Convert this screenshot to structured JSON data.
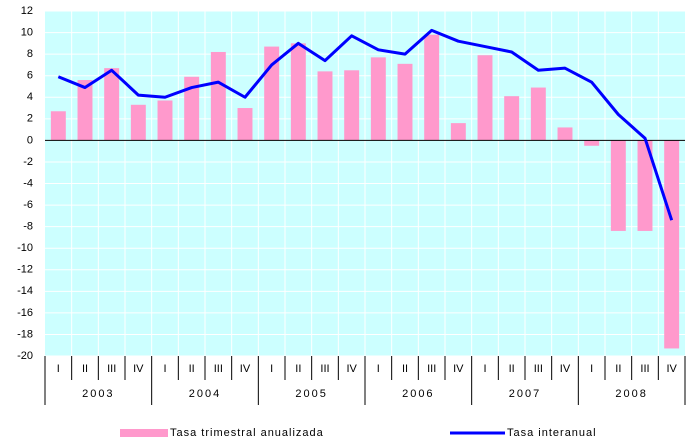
{
  "chart_data": {
    "type": "bar+line",
    "categories": [
      "I",
      "II",
      "III",
      "IV",
      "I",
      "II",
      "III",
      "IV",
      "I",
      "II",
      "III",
      "IV",
      "I",
      "II",
      "III",
      "IV",
      "I",
      "II",
      "III",
      "IV",
      "I",
      "II",
      "III",
      "IV"
    ],
    "groups": [
      "2003",
      "2004",
      "2005",
      "2006",
      "2007",
      "2008"
    ],
    "series": [
      {
        "name": "Tasa trimestral anualizada",
        "type": "bar",
        "color": "#ff99cc",
        "values": [
          2.7,
          5.6,
          6.7,
          3.3,
          3.7,
          5.9,
          8.2,
          3.0,
          8.7,
          9.0,
          6.4,
          6.5,
          7.7,
          7.1,
          9.8,
          1.6,
          7.9,
          4.1,
          4.9,
          1.2,
          -0.5,
          -8.4,
          -8.4,
          -19.3
        ]
      },
      {
        "name": "Tasa interanual",
        "type": "line",
        "color": "#0000ff",
        "values": [
          5.9,
          4.9,
          6.5,
          4.2,
          4.0,
          4.9,
          5.4,
          4.0,
          7.0,
          9.0,
          7.4,
          9.7,
          8.4,
          8.0,
          10.2,
          9.2,
          8.7,
          8.2,
          6.5,
          6.7,
          5.4,
          2.4,
          0.2,
          -7.4
        ]
      }
    ],
    "ylim": [
      -20,
      12
    ],
    "yticks": [
      -20,
      -18,
      -16,
      -14,
      -12,
      -10,
      -8,
      -6,
      -4,
      -2,
      0,
      2,
      4,
      6,
      8,
      10,
      12
    ],
    "grid": true,
    "legend": "bottom",
    "background": "#ccffff"
  }
}
